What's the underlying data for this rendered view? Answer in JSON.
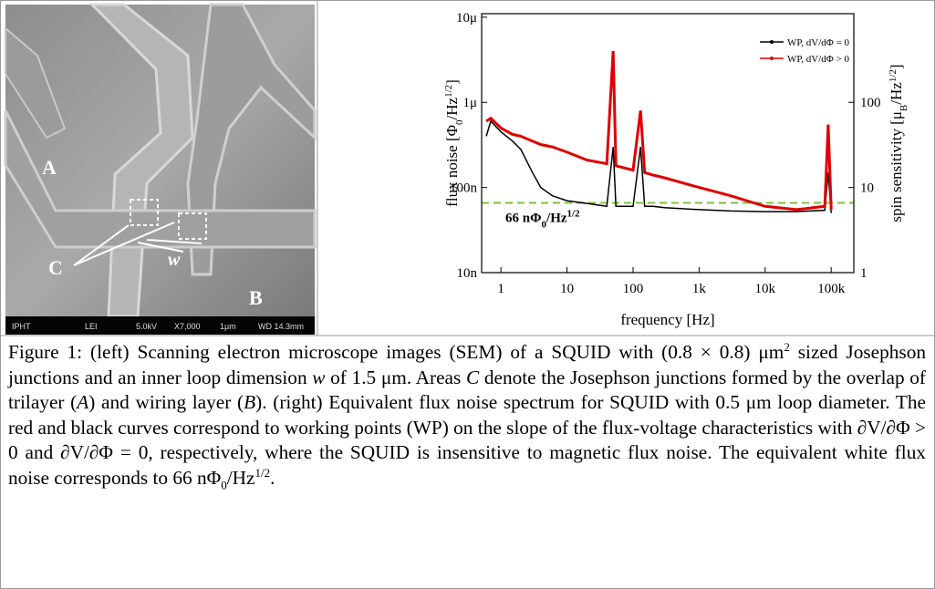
{
  "sem_image": {
    "labels": {
      "a": "A",
      "b": "B",
      "c": "C",
      "w": "w"
    },
    "info_bar": [
      "IPHT",
      "LEI",
      "5.0kV",
      "X7,000",
      "1μm",
      "WD 14.3mm"
    ]
  },
  "chart_data": {
    "type": "line",
    "xlabel": "frequency [Hz]",
    "ylabel": [
      "flux noise [Φ",
      "0",
      "/Hz",
      "1/2",
      "]"
    ],
    "y2label": [
      "spin sensitivity [μ",
      "B",
      "/Hz",
      "1/2",
      "]"
    ],
    "log_x": true,
    "log_y": true,
    "xlim": [
      0.51,
      220000
    ],
    "xticks": [
      1,
      10,
      100,
      {
        "value": 1000,
        "label": "1k"
      },
      {
        "value": 10000,
        "label": "10k"
      },
      {
        "value": 100000,
        "label": "100k"
      }
    ],
    "ylim": [
      1e-08,
      1.1e-05
    ],
    "yticks": [
      {
        "value": 1e-08,
        "label": "10n"
      },
      {
        "value": 1e-07,
        "label": "100n"
      },
      {
        "value": 1e-06,
        "label": "1μ"
      },
      {
        "value": 1e-05,
        "label": "10μ"
      }
    ],
    "y2lim": [
      1,
      1100
    ],
    "y2ticks": [
      1,
      10,
      100
    ],
    "legend": "upper right",
    "x": [
      0.6,
      0.7,
      1,
      1.5,
      2,
      3,
      4,
      6,
      10,
      20,
      40,
      50,
      55,
      100,
      130,
      150,
      200,
      300,
      1000,
      3000,
      10000,
      30000,
      80000,
      90000,
      100000
    ],
    "series": [
      {
        "name": "WP, dV/dΦ = 0",
        "color": "#000000",
        "values": [
          4e-07,
          6e-07,
          4.5e-07,
          3.5e-07,
          2.8e-07,
          1.5e-07,
          1e-07,
          8e-08,
          7e-08,
          6.5e-08,
          6e-08,
          3e-07,
          6e-08,
          6e-08,
          3e-07,
          6e-08,
          6e-08,
          5.8e-08,
          5.5e-08,
          5.3e-08,
          5.2e-08,
          5.2e-08,
          5.4e-08,
          1.5e-07,
          5e-08
        ]
      },
      {
        "name": "WP, dV/dΦ > 0",
        "color": "#e00000",
        "values": [
          6e-07,
          6.5e-07,
          5e-07,
          4.2e-07,
          4e-07,
          3.5e-07,
          3.2e-07,
          3e-07,
          2.6e-07,
          2.1e-07,
          1.9e-07,
          4e-06,
          1.8e-07,
          1.6e-07,
          8e-07,
          1.5e-07,
          1.4e-07,
          1.3e-07,
          1e-07,
          8e-08,
          6e-08,
          5.5e-08,
          6e-08,
          5.5e-07,
          5.5e-08
        ]
      }
    ],
    "reference": {
      "value": 6.6e-08,
      "color": "#7dc242",
      "label": [
        "66 nΦ",
        "0",
        "/Hz",
        "1/2"
      ]
    }
  },
  "caption": [
    {
      "text": "Figure 1: (left) Scanning electron microscope images (SEM) of a SQUID with (0.8 × 0.8) μm"
    },
    {
      "text": "2",
      "sup": true
    },
    {
      "text": " sized Josephson junctions and an inner loop dimension "
    },
    {
      "text": "w",
      "italic": true
    },
    {
      "text": " of 1.5 μm. Areas "
    },
    {
      "text": "C",
      "italic": true
    },
    {
      "text": " denote the Josephson junctions formed by the overlap of trilayer ("
    },
    {
      "text": "A",
      "italic": true
    },
    {
      "text": ") and wiring layer ("
    },
    {
      "text": "B",
      "italic": true
    },
    {
      "text": "). (right) Equivalent flux noise spectrum for SQUID with 0.5 μm loop diameter. The red and black curves correspond to working points (WP) on the slope of the flux-voltage characteristics with ∂V/∂Φ > 0 and ∂V/∂Φ = 0, respectively, where the SQUID is insensitive to magnetic flux noise. The equivalent white flux noise corresponds to 66 nΦ"
    },
    {
      "text": "0",
      "sub": true
    },
    {
      "text": "/Hz"
    },
    {
      "text": "1/2",
      "sup": true
    },
    {
      "text": "."
    }
  ]
}
